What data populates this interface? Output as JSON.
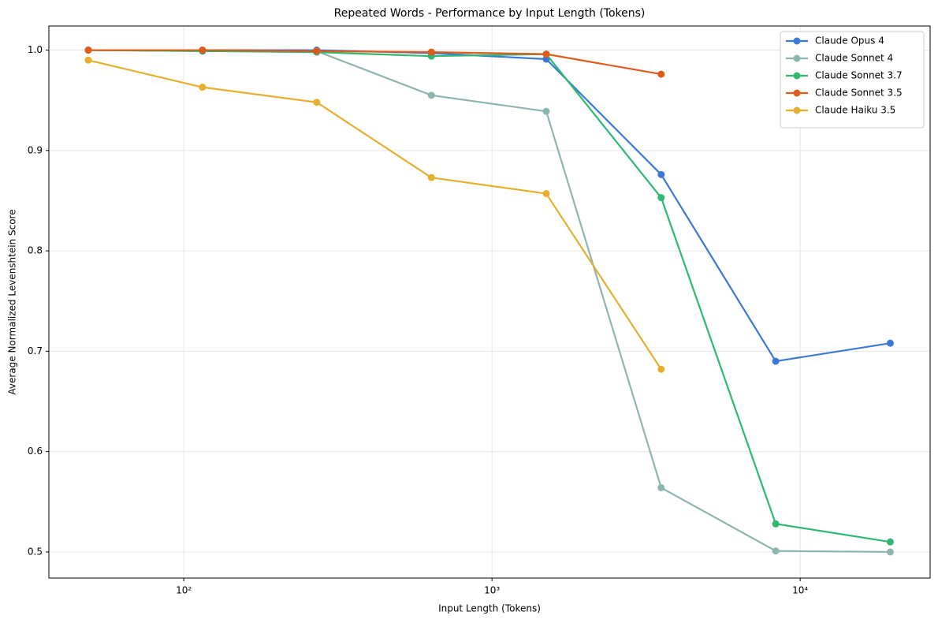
{
  "chart_data": {
    "type": "line",
    "title": "Repeated Words - Performance by Input Length (Tokens)",
    "xlabel": "Input Length (Tokens)",
    "ylabel": "Average Normalized Levenshtein Score",
    "x": [
      49,
      115,
      270,
      636,
      1500,
      3540,
      8330,
      19600
    ],
    "series": [
      {
        "name": "Claude Opus 4",
        "color": "#3c78d8",
        "values": [
          1.0,
          1.0,
          1.0,
          0.997,
          0.991,
          0.876,
          0.69,
          0.708
        ]
      },
      {
        "name": "Claude Sonnet 4",
        "color": "#8fb5b0",
        "values": [
          1.0,
          0.999,
          0.999,
          0.955,
          0.939,
          0.564,
          0.501,
          0.5
        ]
      },
      {
        "name": "Claude Sonnet 3.7",
        "color": "#2eb872",
        "values": [
          1.0,
          0.999,
          0.998,
          0.994,
          0.996,
          0.853,
          0.528,
          0.51
        ]
      },
      {
        "name": "Claude Sonnet 3.5",
        "color": "#e05a1a",
        "values": [
          1.0,
          1.0,
          0.999,
          0.998,
          0.996,
          0.976,
          null,
          null
        ]
      },
      {
        "name": "Claude Haiku 3.5",
        "color": "#e6b02e",
        "values": [
          0.99,
          0.963,
          0.948,
          0.873,
          0.857,
          0.682,
          null,
          null
        ]
      }
    ],
    "xscale": "log",
    "xlim": [
      36.5,
      26400
    ],
    "xticks": [
      {
        "value": 100,
        "label": "10²"
      },
      {
        "value": 1000,
        "label": "10³"
      },
      {
        "value": 10000,
        "label": "10⁴"
      }
    ],
    "ylim": [
      0.474,
      1.024
    ],
    "yticks": [
      0.5,
      0.6,
      0.7,
      0.8,
      0.9,
      {
        "value": 1,
        "label": "1.0"
      }
    ],
    "grid": true,
    "legend": "upper right"
  }
}
